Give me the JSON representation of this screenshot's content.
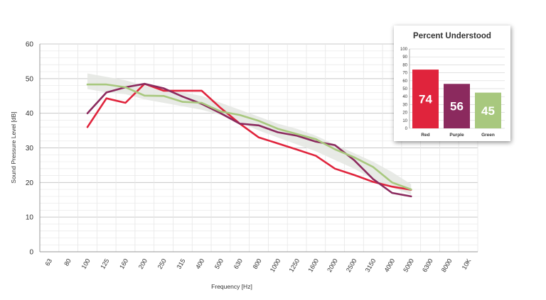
{
  "chart_data": [
    {
      "type": "line",
      "xlabel": "Frequency [Hz]",
      "ylabel": "Sound Pressure Level [dB]",
      "ylim": [
        0,
        60
      ],
      "yticks": [
        "0",
        "10",
        "20",
        "30",
        "40",
        "50",
        "60"
      ],
      "categories": [
        "63",
        "80",
        "100",
        "125",
        "160",
        "200",
        "250",
        "315",
        "400",
        "500",
        "630",
        "800",
        "1000",
        "1250",
        "1600",
        "2000",
        "2500",
        "3150",
        "4000",
        "5000",
        "6300",
        "8000",
        "10K"
      ],
      "grid": true,
      "band": {
        "upper": [
          null,
          null,
          51.5,
          50.5,
          49.5,
          48,
          47,
          46,
          45,
          43,
          41,
          39,
          37,
          35.5,
          33.5,
          31,
          28.5,
          26,
          23,
          19.5,
          null,
          null,
          null
        ],
        "lower": [
          null,
          null,
          47,
          46,
          45.5,
          44,
          43,
          42,
          41,
          39.5,
          37.5,
          35,
          33,
          31,
          29,
          26.5,
          24,
          21,
          18.5,
          16.5,
          null,
          null,
          null
        ],
        "color": "#e4e6e2"
      },
      "series": [
        {
          "color": "#e0243c",
          "values": [
            null,
            null,
            36,
            44.3,
            43,
            48.5,
            46.5,
            46.5,
            46.5,
            41.5,
            37,
            33,
            31.3,
            29.5,
            27.7,
            24,
            22.2,
            20.2,
            18.8,
            17.9,
            null,
            null,
            null
          ]
        },
        {
          "color": "#8b2a5e",
          "values": [
            null,
            null,
            40,
            46,
            47.5,
            48.5,
            47.2,
            44.8,
            42.7,
            40,
            37,
            36.5,
            34.5,
            33.5,
            31.8,
            30.8,
            26.5,
            21,
            17,
            16,
            null,
            null,
            null
          ]
        },
        {
          "color": "#a8c87e",
          "values": [
            null,
            null,
            48.3,
            48.3,
            47.5,
            45.1,
            45,
            43.3,
            43,
            40.5,
            39.5,
            37.8,
            35.5,
            34,
            32.5,
            29.6,
            27.3,
            24.5,
            20,
            18,
            null,
            null,
            null
          ]
        }
      ]
    },
    {
      "type": "bar",
      "title": "Percent Understood",
      "ylim": [
        0,
        100
      ],
      "yticks": [
        "0",
        "10",
        "20",
        "30",
        "40",
        "50",
        "60",
        "70",
        "80",
        "90",
        "100"
      ],
      "categories": [
        "Red",
        "Purple",
        "Green"
      ],
      "values": [
        74,
        56,
        45
      ],
      "value_labels": [
        "74",
        "56",
        "45"
      ],
      "colors": [
        "#e0243c",
        "#8b2a5e",
        "#a8c87e"
      ]
    }
  ]
}
